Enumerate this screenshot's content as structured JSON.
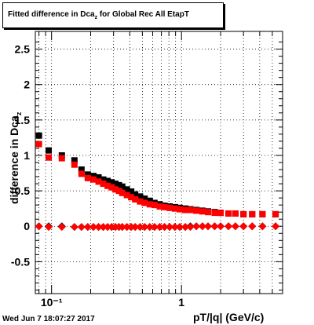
{
  "title": {
    "prefix": "Fitted difference in Dca",
    "sub": "z",
    "suffix": " for Global Rec All EtapT"
  },
  "ylabel": {
    "text": "difference in Dca",
    "sub": "z"
  },
  "xlabel": "pT/|q| (GeV/c)",
  "datestamp": "Wed Jun  7 18:07:27 2017",
  "chart_data": {
    "type": "scatter",
    "x_scale": "log",
    "xlim": [
      0.075,
      6.0
    ],
    "ylim": [
      -0.95,
      2.75
    ],
    "grid": true,
    "x_tick_labels": [
      "10⁻¹",
      "1"
    ],
    "y_ticks": [
      -0.5,
      0,
      0.5,
      1,
      1.5,
      2,
      2.5
    ],
    "series": [
      {
        "marker": "square",
        "color": "#000000",
        "x": [
          0.08,
          0.095,
          0.12,
          0.15,
          0.17,
          0.19,
          0.21,
          0.23,
          0.25,
          0.27,
          0.29,
          0.31,
          0.33,
          0.35,
          0.38,
          0.41,
          0.44,
          0.48,
          0.52,
          0.57,
          0.62,
          0.68,
          0.74,
          0.81,
          0.89,
          0.97,
          1.07,
          1.17,
          1.3,
          1.45,
          1.6,
          1.8,
          2.0,
          2.3,
          2.6,
          3.0,
          3.5,
          4.2,
          5.3
        ],
        "y": [
          1.28,
          1.07,
          1.0,
          0.93,
          0.8,
          0.73,
          0.71,
          0.69,
          0.66,
          0.64,
          0.62,
          0.6,
          0.58,
          0.56,
          0.52,
          0.49,
          0.45,
          0.42,
          0.39,
          0.36,
          0.33,
          0.31,
          0.29,
          0.28,
          0.27,
          0.26,
          0.25,
          0.24,
          0.23,
          0.22,
          0.21,
          0.2,
          0.19,
          0.18,
          0.18,
          0.17,
          0.17,
          0.17,
          0.17
        ]
      },
      {
        "marker": "square",
        "color": "#ff0000",
        "x": [
          0.08,
          0.095,
          0.12,
          0.15,
          0.17,
          0.19,
          0.21,
          0.23,
          0.25,
          0.27,
          0.29,
          0.31,
          0.33,
          0.35,
          0.38,
          0.41,
          0.44,
          0.48,
          0.52,
          0.57,
          0.62,
          0.68,
          0.74,
          0.81,
          0.89,
          0.97,
          1.07,
          1.17,
          1.3,
          1.45,
          1.6,
          1.8,
          2.0,
          2.3,
          2.6,
          3.0,
          3.5,
          4.2,
          5.3
        ],
        "y": [
          1.16,
          0.97,
          0.96,
          0.87,
          0.74,
          0.68,
          0.66,
          0.63,
          0.6,
          0.57,
          0.55,
          0.52,
          0.5,
          0.47,
          0.44,
          0.41,
          0.38,
          0.35,
          0.33,
          0.31,
          0.3,
          0.28,
          0.27,
          0.26,
          0.25,
          0.24,
          0.23,
          0.23,
          0.22,
          0.21,
          0.2,
          0.19,
          0.19,
          0.18,
          0.18,
          0.17,
          0.17,
          0.17,
          0.17
        ]
      },
      {
        "marker": "diamond",
        "color": "#000000",
        "x": [
          0.08,
          0.095,
          0.12,
          0.15,
          0.17,
          0.19,
          0.21,
          0.23,
          0.25,
          0.27,
          0.29,
          0.31,
          0.33,
          0.35,
          0.38,
          0.41,
          0.44,
          0.48,
          0.52,
          0.57,
          0.62,
          0.68,
          0.74,
          0.81,
          0.89,
          0.97,
          1.07,
          1.17,
          1.3,
          1.45,
          1.6,
          1.8,
          2.0,
          2.3,
          2.6,
          3.0,
          3.5,
          4.2,
          5.3
        ],
        "y": [
          0.0,
          0.0,
          0.0,
          -0.01,
          -0.01,
          -0.01,
          -0.01,
          -0.01,
          -0.01,
          -0.01,
          -0.01,
          -0.01,
          -0.01,
          -0.01,
          -0.01,
          -0.01,
          -0.01,
          -0.01,
          -0.01,
          -0.01,
          -0.01,
          -0.01,
          -0.01,
          -0.01,
          -0.01,
          -0.01,
          -0.01,
          0.0,
          0.0,
          0.0,
          0.0,
          0.0,
          0.0,
          0.0,
          0.0,
          0.0,
          0.0,
          0.0,
          0.0
        ]
      },
      {
        "marker": "diamond",
        "color": "#ff0000",
        "x": [
          0.08,
          0.095,
          0.12,
          0.15,
          0.17,
          0.19,
          0.21,
          0.23,
          0.25,
          0.27,
          0.29,
          0.31,
          0.33,
          0.35,
          0.38,
          0.41,
          0.44,
          0.48,
          0.52,
          0.57,
          0.62,
          0.68,
          0.74,
          0.81,
          0.89,
          0.97,
          1.07,
          1.17,
          1.3,
          1.45,
          1.6,
          1.8,
          2.0,
          2.3,
          2.6,
          3.0,
          3.5,
          4.2,
          5.3
        ],
        "y": [
          0.0,
          -0.01,
          -0.01,
          -0.01,
          -0.01,
          -0.01,
          -0.01,
          -0.01,
          -0.01,
          -0.01,
          -0.01,
          -0.01,
          -0.01,
          -0.01,
          -0.01,
          -0.01,
          -0.01,
          -0.01,
          -0.01,
          -0.01,
          -0.01,
          -0.01,
          -0.01,
          -0.01,
          -0.01,
          -0.01,
          -0.01,
          -0.01,
          0.0,
          0.0,
          0.0,
          0.0,
          0.0,
          0.0,
          0.0,
          0.0,
          0.0,
          0.0,
          0.0
        ]
      }
    ]
  }
}
